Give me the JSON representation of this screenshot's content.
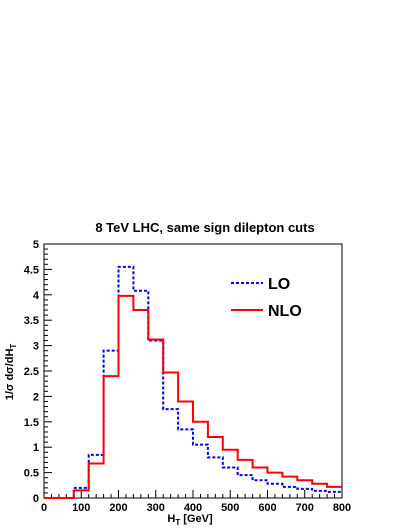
{
  "chart_data": {
    "type": "step-histogram",
    "title": "8 TeV LHC, same sign dilepton cuts",
    "xlabel": "H_T [GeV]",
    "ylabel": "1/σ dσ/dH_T",
    "xlim": [
      0,
      800
    ],
    "ylim": [
      0,
      5
    ],
    "bin_edges": [
      0,
      40,
      80,
      120,
      160,
      200,
      240,
      280,
      320,
      360,
      400,
      440,
      480,
      520,
      560,
      600,
      640,
      680,
      720,
      760,
      800
    ],
    "x_ticks": [
      0,
      100,
      200,
      300,
      400,
      500,
      600,
      700,
      800
    ],
    "y_ticks": [
      0,
      0.5,
      1,
      1.5,
      2,
      2.5,
      3,
      3.5,
      4,
      4.5,
      5
    ],
    "x_tick_labels": [
      "0",
      "100",
      "200",
      "300",
      "400",
      "500",
      "600",
      "700",
      "800"
    ],
    "y_tick_labels": [
      "0",
      "0.5",
      "1",
      "1.5",
      "2",
      "2.5",
      "3",
      "3.5",
      "4",
      "4.5",
      "5"
    ],
    "legend_position": "top-right",
    "series": [
      {
        "name": "LO",
        "color": "#0000ff",
        "style": "dotted",
        "values": [
          0,
          0,
          0.2,
          0.85,
          2.9,
          4.55,
          4.08,
          3.1,
          1.75,
          1.35,
          1.05,
          0.8,
          0.6,
          0.45,
          0.35,
          0.28,
          0.22,
          0.18,
          0.14,
          0.12
        ]
      },
      {
        "name": "NLO",
        "color": "#ff0000",
        "style": "solid",
        "values": [
          0,
          0,
          0.15,
          0.68,
          2.4,
          3.98,
          3.7,
          3.12,
          2.47,
          1.9,
          1.5,
          1.2,
          0.95,
          0.75,
          0.6,
          0.5,
          0.42,
          0.35,
          0.28,
          0.22
        ]
      }
    ]
  }
}
